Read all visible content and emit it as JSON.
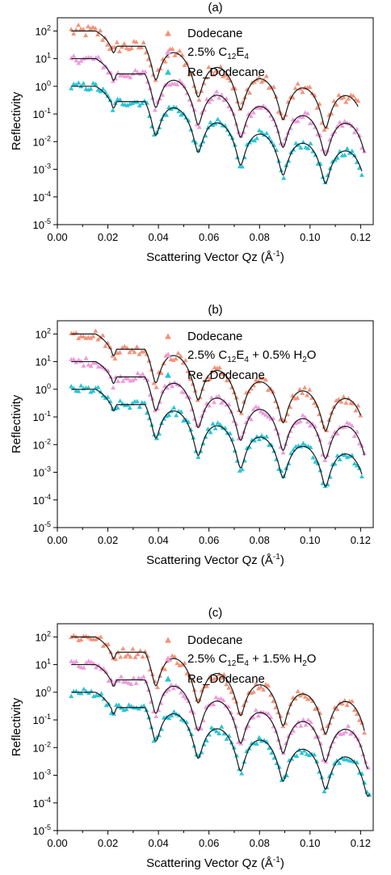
{
  "chart_data": [
    {
      "type": "scatter",
      "panel_label": "(a)",
      "xlabel": "Scattering Vector Qz (Å",
      "xlabel_sup": "-1",
      "xlabel_end": ")",
      "ylabel": "Reflectivity",
      "xlim": [
        0,
        0.125
      ],
      "ylim": [
        1e-05,
        300
      ],
      "yscale": "log",
      "x_ticks": [
        "0.00",
        "0.02",
        "0.04",
        "0.06",
        "0.08",
        "0.10",
        "0.12"
      ],
      "y_ticks": [
        {
          "base": "10",
          "exp": "2"
        },
        {
          "base": "10",
          "exp": "1"
        },
        {
          "base": "10",
          "exp": "0"
        },
        {
          "base": "10",
          "exp": "-1"
        },
        {
          "base": "10",
          "exp": "-2"
        },
        {
          "base": "10",
          "exp": "-3"
        },
        {
          "base": "10",
          "exp": "-4"
        },
        {
          "base": "10",
          "exp": "-5"
        }
      ],
      "legend_position": "top-right",
      "fit_line_color": "#1a1a1a",
      "series": [
        {
          "name": "Dodecane",
          "color": "#f4937a",
          "marker": "triangle",
          "offset": 100,
          "x_max": 0.119,
          "sigma": 0.45,
          "fit": true
        },
        {
          "name_parts": [
            {
              "t": "2.5% C"
            },
            {
              "t": "12",
              "sub": true
            },
            {
              "t": "E"
            },
            {
              "t": "4",
              "sub": true
            }
          ],
          "color": "#ee9bdc",
          "marker": "triangle",
          "offset": 10,
          "x_max": 0.1215,
          "sigma": 0.3,
          "fit": true
        },
        {
          "name": "Re_Dodecane",
          "color": "#27c5d6",
          "marker": "triangle",
          "offset": 1,
          "x_max": 0.1205,
          "sigma": 0.3,
          "fit": true
        }
      ]
    },
    {
      "type": "scatter",
      "panel_label": "(b)",
      "xlabel": "Scattering Vector Qz (Å",
      "xlabel_sup": "-1",
      "xlabel_end": ")",
      "ylabel": "Reflectivity",
      "xlim": [
        0,
        0.125
      ],
      "ylim": [
        1e-05,
        300
      ],
      "yscale": "log",
      "x_ticks": [
        "0.00",
        "0.02",
        "0.04",
        "0.06",
        "0.08",
        "0.10",
        "0.12"
      ],
      "y_ticks": [
        {
          "base": "10",
          "exp": "2"
        },
        {
          "base": "10",
          "exp": "1"
        },
        {
          "base": "10",
          "exp": "0"
        },
        {
          "base": "10",
          "exp": "-1"
        },
        {
          "base": "10",
          "exp": "-2"
        },
        {
          "base": "10",
          "exp": "-3"
        },
        {
          "base": "10",
          "exp": "-4"
        },
        {
          "base": "10",
          "exp": "-5"
        }
      ],
      "legend_position": "top-right",
      "fit_line_color": "#1a1a1a",
      "series": [
        {
          "name": "Dodecane",
          "color": "#f4937a",
          "marker": "triangle",
          "offset": 100,
          "x_max": 0.12,
          "sigma": 0.35,
          "fit": true
        },
        {
          "name_parts": [
            {
              "t": "2.5% C"
            },
            {
              "t": "12",
              "sub": true
            },
            {
              "t": "E"
            },
            {
              "t": "4",
              "sub": true
            },
            {
              "t": " + 0.5% H"
            },
            {
              "t": "2",
              "sub": true
            },
            {
              "t": "O"
            }
          ],
          "color": "#ee9bdc",
          "marker": "triangle",
          "offset": 10,
          "x_max": 0.1215,
          "sigma": 0.3,
          "fit": true
        },
        {
          "name": "Re_Dodecane",
          "color": "#27c5d6",
          "marker": "triangle",
          "offset": 1,
          "x_max": 0.1205,
          "sigma": 0.3,
          "fit": true
        }
      ]
    },
    {
      "type": "scatter",
      "panel_label": "(c)",
      "xlabel": "Scattering Vector Qz (Å",
      "xlabel_sup": "-1",
      "xlabel_end": ")",
      "ylabel": "Reflectivity",
      "xlim": [
        0,
        0.125
      ],
      "ylim": [
        1e-05,
        300
      ],
      "yscale": "log",
      "x_ticks": [
        "0.00",
        "0.02",
        "0.04",
        "0.06",
        "0.08",
        "0.10",
        "0.12"
      ],
      "y_ticks": [
        {
          "base": "10",
          "exp": "2"
        },
        {
          "base": "10",
          "exp": "1"
        },
        {
          "base": "10",
          "exp": "0"
        },
        {
          "base": "10",
          "exp": "-1"
        },
        {
          "base": "10",
          "exp": "-2"
        },
        {
          "base": "10",
          "exp": "-3"
        },
        {
          "base": "10",
          "exp": "-4"
        },
        {
          "base": "10",
          "exp": "-5"
        }
      ],
      "legend_position": "top-right",
      "fit_line_color": "#1a1a1a",
      "series": [
        {
          "name": "Dodecane",
          "color": "#f4937a",
          "marker": "triangle",
          "offset": 100,
          "x_max": 0.1215,
          "sigma": 0.35,
          "fit": true
        },
        {
          "name_parts": [
            {
              "t": "2.5% C"
            },
            {
              "t": "12",
              "sub": true
            },
            {
              "t": "E"
            },
            {
              "t": "4",
              "sub": true
            },
            {
              "t": " + 1.5% H"
            },
            {
              "t": "2",
              "sub": true
            },
            {
              "t": "O"
            }
          ],
          "color": "#ee9bdc",
          "marker": "triangle",
          "offset": 10,
          "x_max": 0.123,
          "sigma": 0.3,
          "fit": true
        },
        {
          "name": "Re_Dodecane",
          "color": "#27c5d6",
          "marker": "triangle",
          "offset": 1,
          "x_max": 0.1235,
          "sigma": 0.3,
          "fit": true
        }
      ]
    }
  ]
}
